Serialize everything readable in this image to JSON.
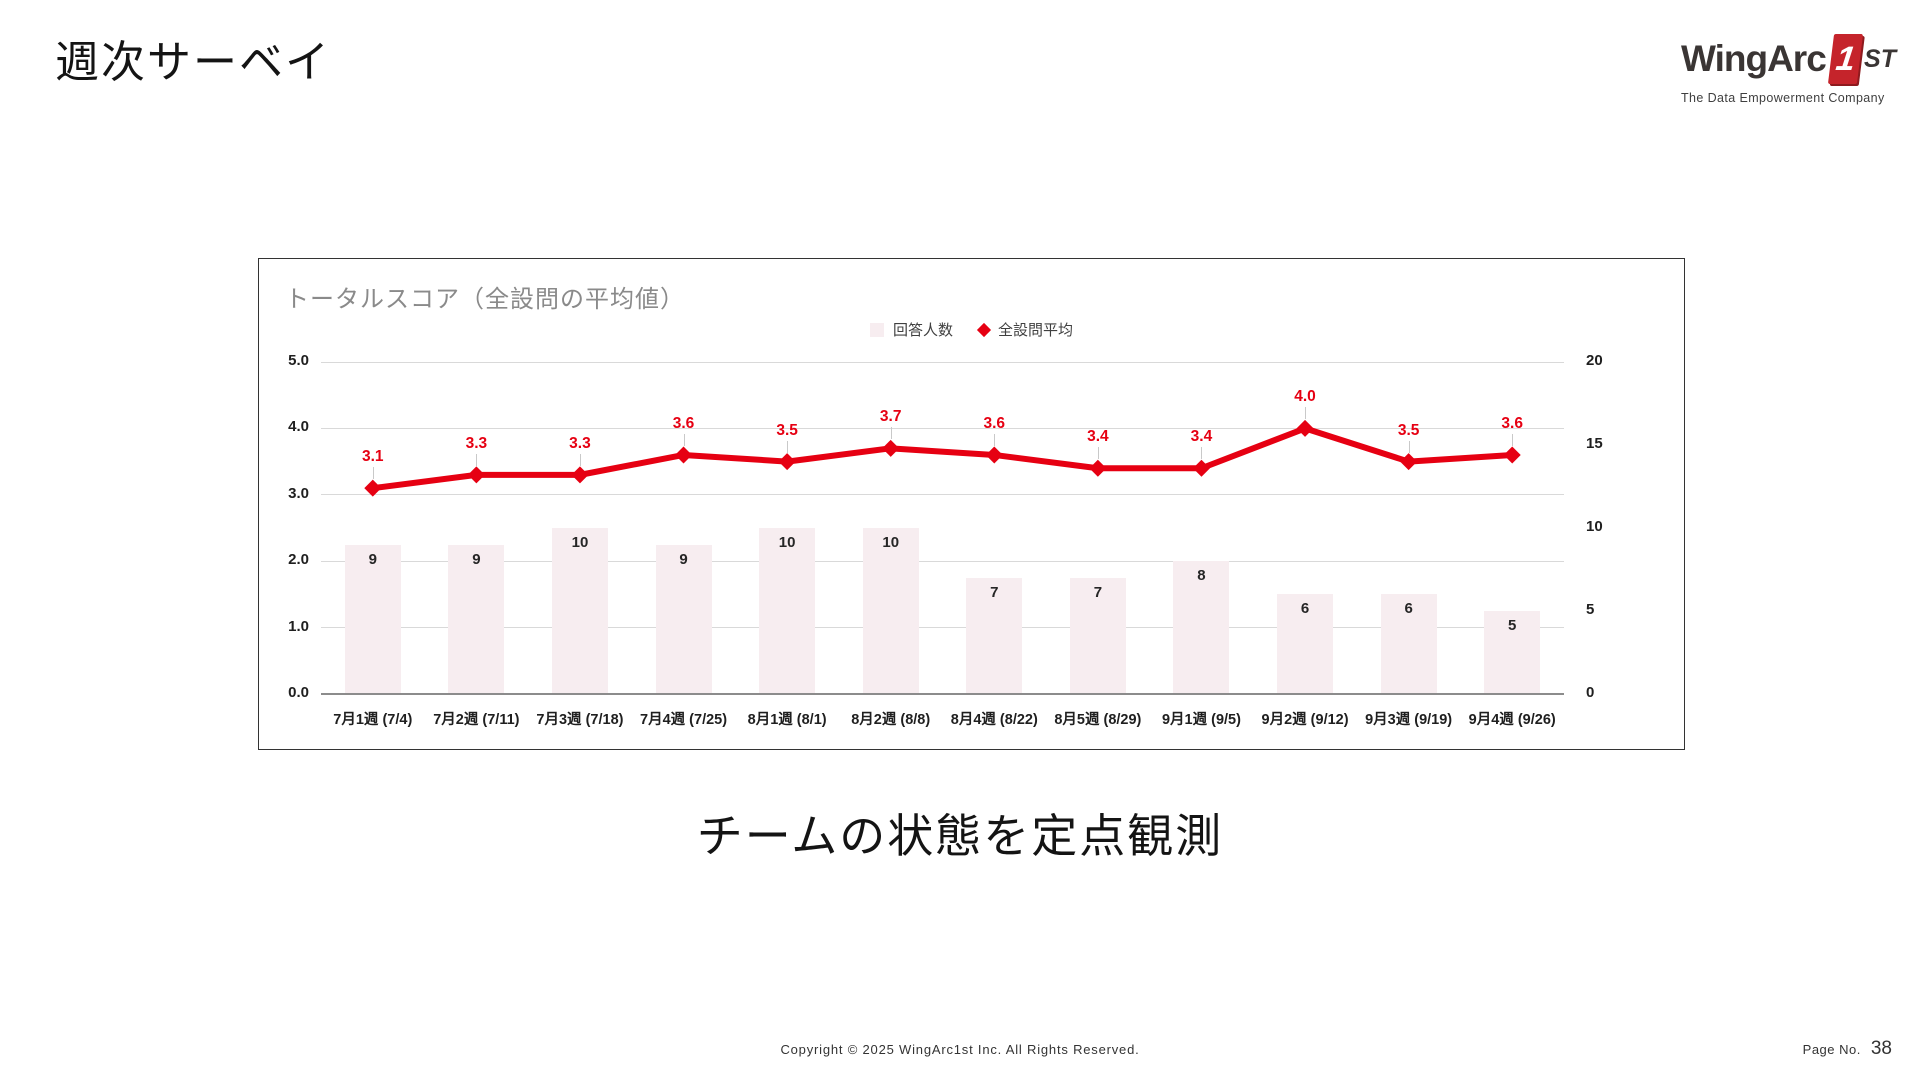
{
  "slide": {
    "title": "週次サーベイ",
    "statement": "チームの状態を定点観測"
  },
  "logo": {
    "brand": "WingArc",
    "one": "1",
    "st": "ST",
    "tagline": "The Data Empowerment Company"
  },
  "footer": {
    "copyright": "Copyright © 2025 WingArc1st Inc.  All Rights Reserved.",
    "page_label": "Page No.",
    "page_number": "38"
  },
  "chart_data": {
    "type": "bar",
    "subtype": "combo-bar-line",
    "title": "トータルスコア（全設問の平均値）",
    "categories": [
      "7月1週 (7/4)",
      "7月2週 (7/11)",
      "7月3週 (7/18)",
      "7月4週 (7/25)",
      "8月1週 (8/1)",
      "8月2週 (8/8)",
      "8月4週 (8/22)",
      "8月5週 (8/29)",
      "9月1週 (9/5)",
      "9月2週 (9/12)",
      "9月3週 (9/19)",
      "9月4週 (9/26)"
    ],
    "series": [
      {
        "name": "回答人数",
        "type": "bar",
        "axis": "right",
        "values": [
          9,
          9,
          10,
          9,
          10,
          10,
          7,
          7,
          8,
          6,
          6,
          5
        ]
      },
      {
        "name": "全設問平均",
        "type": "line",
        "axis": "left",
        "values": [
          3.1,
          3.3,
          3.3,
          3.6,
          3.5,
          3.7,
          3.6,
          3.4,
          3.4,
          4.0,
          3.5,
          3.6
        ]
      }
    ],
    "left_axis": {
      "min": 0,
      "max": 5,
      "ticks": [
        "5.0",
        "4.0",
        "3.0",
        "2.0",
        "1.0",
        "0.0"
      ]
    },
    "right_axis": {
      "min": 0,
      "max": 20,
      "ticks": [
        "20",
        "15",
        "10",
        "5",
        "0"
      ]
    },
    "grid": "horizontal",
    "legend_position": "top-center",
    "colors": {
      "bar_fill": "#f7edf0",
      "line": "#e60012",
      "point_label": "#e60012",
      "gridline": "#d9d9d9",
      "leader": "#c9c9c9"
    }
  }
}
